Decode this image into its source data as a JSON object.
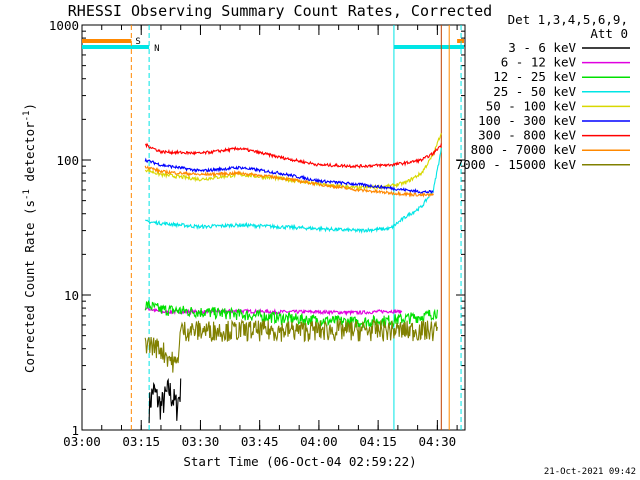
{
  "chart_data": {
    "type": "line",
    "title": "RHESSI Observing Summary Count Rates, Corrected",
    "xlabel": "Start Time (06-Oct-04 02:59:22)",
    "ylabel": "Corrected Count Rate (s",
    "ylabel_sup1": "-1",
    "ylabel_mid": " detector",
    "ylabel_sup2": "-1",
    "ylabel_end": ")",
    "y_scale": "log",
    "ylim": [
      1,
      1000
    ],
    "xlim": [
      "03:00",
      "04:37"
    ],
    "x_ticks": [
      "03:00",
      "03:15",
      "03:30",
      "03:45",
      "04:00",
      "04:15",
      "04:30"
    ],
    "y_ticks": [
      "1",
      "10",
      "100",
      "1000"
    ],
    "legend_header": [
      "Det 1,3,4,5,6,9,",
      "Att 0"
    ],
    "legend_placement": "right",
    "timestamp": "21-Oct-2021 09:42",
    "markers": [
      {
        "label": "S",
        "color": "#ff8800",
        "time": "03:13"
      },
      {
        "label": "N",
        "color": "#00e5e5",
        "time": "03:17"
      }
    ],
    "series": [
      {
        "name": "3 - 6 keV",
        "color": "#000000",
        "x": [
          "03:17",
          "03:18",
          "03:20",
          "03:22",
          "03:24",
          "03:25"
        ],
        "values": [
          1.5,
          2.0,
          1.5,
          2.0,
          1.5,
          2.0
        ]
      },
      {
        "name": "6 - 12 keV",
        "color": "#e000e0",
        "x": [
          "03:16",
          "03:20",
          "03:30",
          "03:40",
          "03:50",
          "04:00",
          "04:10",
          "04:18",
          "04:21"
        ],
        "values": [
          8.0,
          7.5,
          7.5,
          7.6,
          7.5,
          7.5,
          7.4,
          7.6,
          7.5
        ]
      },
      {
        "name": "12 - 25 keV",
        "color": "#00e000",
        "x": [
          "03:16",
          "03:20",
          "03:30",
          "03:40",
          "03:50",
          "04:00",
          "04:10",
          "04:18",
          "04:27",
          "04:30"
        ],
        "values": [
          8.5,
          7.8,
          7.5,
          7.2,
          6.8,
          6.5,
          6.3,
          6.5,
          7.0,
          7.5
        ]
      },
      {
        "name": "25 - 50 keV",
        "color": "#00e5e5",
        "x": [
          "03:16",
          "03:20",
          "03:30",
          "03:40",
          "03:50",
          "04:00",
          "04:10",
          "04:18",
          "04:22",
          "04:26",
          "04:29",
          "04:31"
        ],
        "values": [
          35,
          34,
          32,
          33,
          32,
          31,
          30,
          31,
          38,
          45,
          60,
          120
        ]
      },
      {
        "name": "50 - 100 keV",
        "color": "#d8d800",
        "x": [
          "03:16",
          "03:20",
          "03:30",
          "03:40",
          "03:50",
          "04:00",
          "04:10",
          "04:18",
          "04:22",
          "04:26",
          "04:29",
          "04:31"
        ],
        "values": [
          85,
          78,
          72,
          78,
          73,
          66,
          62,
          64,
          68,
          80,
          110,
          160
        ]
      },
      {
        "name": "100 - 300 keV",
        "color": "#0000ff",
        "x": [
          "03:16",
          "03:20",
          "03:30",
          "03:40",
          "03:50",
          "04:00",
          "04:10",
          "04:18",
          "04:22",
          "04:26",
          "04:29"
        ],
        "values": [
          100,
          92,
          83,
          88,
          80,
          70,
          66,
          62,
          60,
          58,
          58
        ]
      },
      {
        "name": "300 - 800 keV",
        "color": "#ff0000",
        "x": [
          "03:16",
          "03:20",
          "03:30",
          "03:40",
          "03:50",
          "04:00",
          "04:10",
          "04:18",
          "04:22",
          "04:26",
          "04:29",
          "04:31"
        ],
        "values": [
          130,
          115,
          112,
          122,
          105,
          92,
          90,
          92,
          95,
          100,
          112,
          130
        ]
      },
      {
        "name": "800 - 7000 keV",
        "color": "#ff8800",
        "x": [
          "03:16",
          "03:20",
          "03:30",
          "03:40",
          "03:50",
          "04:00",
          "04:10",
          "04:18",
          "04:22",
          "04:26",
          "04:29"
        ],
        "values": [
          90,
          82,
          78,
          80,
          74,
          66,
          60,
          57,
          56,
          55,
          55
        ]
      },
      {
        "name": "7000 - 15000 keV",
        "color": "#808000",
        "x": [
          "03:16",
          "03:20",
          "03:24",
          "03:25",
          "03:30",
          "03:40",
          "03:50",
          "04:00",
          "04:10",
          "04:18",
          "04:27",
          "04:30"
        ],
        "values": [
          4.5,
          4.0,
          3.0,
          5.5,
          5.5,
          5.5,
          5.5,
          5.5,
          5.5,
          5.5,
          5.5,
          5.5
        ]
      }
    ]
  }
}
